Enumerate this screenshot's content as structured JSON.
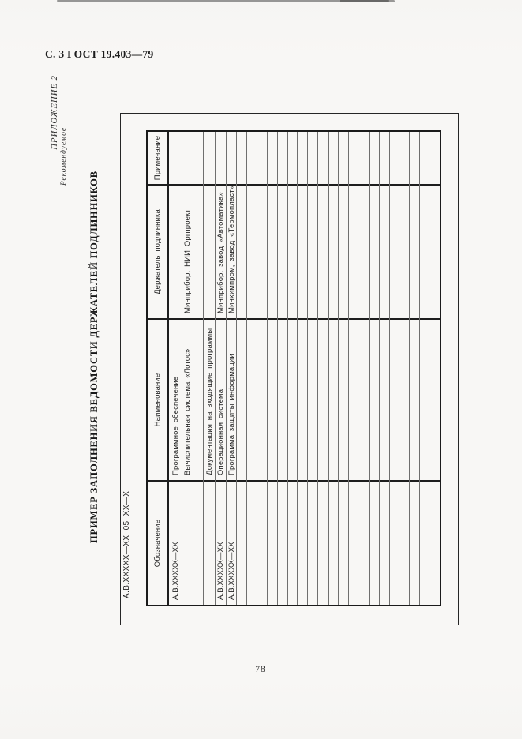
{
  "colors": {
    "paper": "#f7f6f4",
    "ink": "#222222",
    "line_strong": "#1e1e1e",
    "line_thin": "#555555"
  },
  "page": {
    "header": "С. 3 ГОСТ 19.403—79",
    "appendix_title": "ПРИЛОЖЕНИЕ 2",
    "appendix_subtitle": "Рекомендуемое",
    "main_title": "ПРИМЕР ЗАПОЛНЕНИЯ ВЕДОМОСТИ ДЕРЖАТЕЛЕЙ ПОДЛИННИКОВ",
    "doc_designation": "А.В.ХХХХХ—ХХ 05 ХХ—Х",
    "page_number": "78"
  },
  "table": {
    "columns": [
      "Обозначение",
      "Наименование",
      "Держатель подлинника",
      "Примечание"
    ],
    "rows": [
      [
        "А.В.ХХХХХ—ХХ",
        "Программное обеспечение",
        "",
        ""
      ],
      [
        "",
        "Вычислительная система «Лотос»",
        "Минприбор, НИИ Оргпроект",
        ""
      ],
      [
        "",
        "",
        "",
        ""
      ],
      [
        "",
        "Документация на входящие программы",
        "",
        ""
      ],
      [
        "А.В.ХХХХХ—ХХ",
        "Операционная система",
        "Минприбор, завод «Автоматика»",
        ""
      ],
      [
        "А.В.ХХХХХ—ХХ",
        "Программа защиты информации",
        "Минхимпром, завод «Термопласт»",
        ""
      ]
    ],
    "empty_row_count": 20
  }
}
